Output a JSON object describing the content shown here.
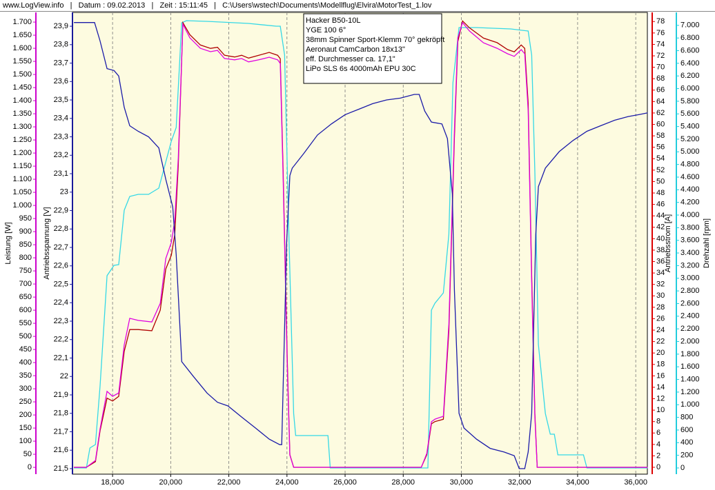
{
  "chart_data": {
    "type": "line",
    "header": "www.LogView.info   |   Datum : 09.02.2013   |   Zeit : 15:11:45   |   C:\\Users\\wstech\\Documents\\Modellflug\\Elvira\\MotorTest_1.lov",
    "info_box": [
      "Hacker B50-10L",
      "YGE 100 6°",
      "38mm Spinner Sport-Klemm 70° gekröpft",
      "Aeronaut CamCarbon 18x13\"",
      "eff. Durchmesser ca. 17,1\"",
      "LiPo SLS 6s 4000mAh EPU 30C"
    ],
    "grid": true,
    "xlim": [
      16620,
      36400
    ],
    "xticks": [
      {
        "value": 18000,
        "label": "18,000"
      },
      {
        "value": 20000,
        "label": "20,000"
      },
      {
        "value": 22000,
        "label": "22,000"
      },
      {
        "value": 24000,
        "label": "24,000"
      },
      {
        "value": 26000,
        "label": "26,000"
      },
      {
        "value": 28000,
        "label": "28,000"
      },
      {
        "value": 30000,
        "label": "30,000"
      },
      {
        "value": 32000,
        "label": "32,000"
      },
      {
        "value": 34000,
        "label": "34,000"
      },
      {
        "value": 36000,
        "label": "36,000"
      }
    ],
    "y_axes": [
      {
        "title": "Leistung [W]",
        "color": "#cc00cc",
        "ylim": [
          -26,
          1737
        ],
        "yticks": [
          0,
          50,
          100,
          150,
          200,
          250,
          300,
          350,
          400,
          450,
          500,
          550,
          600,
          650,
          700,
          750,
          800,
          850,
          900,
          950,
          {
            "value": 1000,
            "label": "1.000"
          },
          {
            "value": 1050,
            "label": "1.050"
          },
          {
            "value": 1100,
            "label": "1.100"
          },
          {
            "value": 1150,
            "label": "1.150"
          },
          {
            "value": 1200,
            "label": "1.200"
          },
          {
            "value": 1250,
            "label": "1.250"
          },
          {
            "value": 1300,
            "label": "1.300"
          },
          {
            "value": 1350,
            "label": "1.350"
          },
          {
            "value": 1400,
            "label": "1.400"
          },
          {
            "value": 1450,
            "label": "1.450"
          },
          {
            "value": 1500,
            "label": "1.500"
          },
          {
            "value": 1550,
            "label": "1.550"
          },
          {
            "value": 1600,
            "label": "1.600"
          },
          {
            "value": 1650,
            "label": "1.650"
          },
          {
            "value": 1700,
            "label": "1.700"
          }
        ]
      },
      {
        "title": "Antriebsspannung [V]",
        "color": "#1a1a9a",
        "ylim": [
          21.47,
          23.975
        ],
        "yticks": [
          {
            "value": 21.5,
            "label": "21,5"
          },
          {
            "value": 21.6,
            "label": "21,6"
          },
          {
            "value": 21.7,
            "label": "21,7"
          },
          {
            "value": 21.8,
            "label": "21,8"
          },
          {
            "value": 21.9,
            "label": "21,9"
          },
          22,
          {
            "value": 22.1,
            "label": "22,1"
          },
          {
            "value": 22.2,
            "label": "22,2"
          },
          {
            "value": 22.3,
            "label": "22,3"
          },
          {
            "value": 22.4,
            "label": "22,4"
          },
          {
            "value": 22.5,
            "label": "22,5"
          },
          {
            "value": 22.6,
            "label": "22,6"
          },
          {
            "value": 22.7,
            "label": "22,7"
          },
          {
            "value": 22.8,
            "label": "22,8"
          },
          {
            "value": 22.9,
            "label": "22,9"
          },
          23,
          {
            "value": 23.1,
            "label": "23,1"
          },
          {
            "value": 23.2,
            "label": "23,2"
          },
          {
            "value": 23.3,
            "label": "23,3"
          },
          {
            "value": 23.4,
            "label": "23,4"
          },
          {
            "value": 23.5,
            "label": "23,5"
          },
          {
            "value": 23.6,
            "label": "23,6"
          },
          {
            "value": 23.7,
            "label": "23,7"
          },
          {
            "value": 23.8,
            "label": "23,8"
          },
          {
            "value": 23.9,
            "label": "23,9"
          }
        ]
      },
      {
        "title": "Antriebsstrom [A]",
        "color": "#dd0000",
        "ylim": [
          -1.2,
          79.6
        ],
        "yticks": [
          0,
          2,
          4,
          6,
          8,
          10,
          12,
          14,
          16,
          18,
          20,
          22,
          24,
          26,
          28,
          30,
          32,
          34,
          36,
          38,
          40,
          42,
          44,
          46,
          48,
          50,
          52,
          54,
          56,
          58,
          60,
          62,
          64,
          66,
          68,
          70,
          72,
          74,
          76,
          78
        ]
      },
      {
        "title": "Drehzahl [rpm]",
        "color": "#22ccdd",
        "ylim": [
          -98,
          7205
        ],
        "yticks": [
          0,
          200,
          400,
          600,
          800,
          {
            "value": 1000,
            "label": "1.000"
          },
          {
            "value": 1200,
            "label": "1.200"
          },
          {
            "value": 1400,
            "label": "1.400"
          },
          {
            "value": 1600,
            "label": "1.600"
          },
          {
            "value": 1800,
            "label": "1.800"
          },
          {
            "value": 2000,
            "label": "2.000"
          },
          {
            "value": 2200,
            "label": "2.200"
          },
          {
            "value": 2400,
            "label": "2.400"
          },
          {
            "value": 2600,
            "label": "2.600"
          },
          {
            "value": 2800,
            "label": "2.800"
          },
          {
            "value": 3000,
            "label": "3.000"
          },
          {
            "value": 3200,
            "label": "3.200"
          },
          {
            "value": 3400,
            "label": "3.400"
          },
          {
            "value": 3600,
            "label": "3.600"
          },
          {
            "value": 3800,
            "label": "3.800"
          },
          {
            "value": 4000,
            "label": "4.000"
          },
          {
            "value": 4200,
            "label": "4.200"
          },
          {
            "value": 4400,
            "label": "4.400"
          },
          {
            "value": 4600,
            "label": "4.600"
          },
          {
            "value": 4800,
            "label": "4.800"
          },
          {
            "value": 5000,
            "label": "5.000"
          },
          {
            "value": 5200,
            "label": "5.200"
          },
          {
            "value": 5400,
            "label": "5.400"
          },
          {
            "value": 5600,
            "label": "5.600"
          },
          {
            "value": 5800,
            "label": "5.800"
          },
          {
            "value": 6000,
            "label": "6.000"
          },
          {
            "value": 6200,
            "label": "6.200"
          },
          {
            "value": 6400,
            "label": "6.400"
          },
          {
            "value": 6600,
            "label": "6.600"
          },
          {
            "value": 6800,
            "label": "6.800"
          },
          {
            "value": 7000,
            "label": "7.000"
          }
        ]
      }
    ],
    "series": [
      {
        "axis": 3,
        "color": "#33d8e6",
        "x": [
          16670,
          17100,
          17220,
          17410,
          17570,
          17810,
          18050,
          18210,
          18400,
          18590,
          18880,
          19240,
          19590,
          19830,
          20020,
          20190,
          20380,
          20540,
          21250,
          22680,
          23630,
          23770,
          23920,
          24060,
          24230,
          24300,
          24820,
          25410,
          25490,
          28380,
          28850,
          28970,
          29090,
          29380,
          29570,
          29710,
          29920,
          30520,
          31700,
          32300,
          32420,
          32530,
          32650,
          32890,
          33060,
          33200,
          33320,
          34200,
          34320,
          36410
        ],
        "values": [
          0,
          0,
          316,
          371,
          1297,
          3041,
          3205,
          3216,
          4077,
          4295,
          4327,
          4327,
          4425,
          4840,
          5167,
          5385,
          7041,
          7074,
          7063,
          7031,
          6987,
          6987,
          6529,
          3804,
          861,
          512,
          512,
          512,
          0,
          0,
          0,
          2496,
          2605,
          2769,
          3695,
          6093,
          6965,
          6965,
          6943,
          6911,
          6529,
          4676,
          1951,
          861,
          534,
          534,
          207,
          207,
          0,
          0
        ]
      },
      {
        "axis": 2,
        "color": "#b00000",
        "x": [
          16670,
          17100,
          17410,
          17570,
          17810,
          18000,
          18210,
          18400,
          18590,
          18880,
          19350,
          19640,
          19830,
          20020,
          20140,
          20260,
          20420,
          20660,
          21020,
          21370,
          21610,
          21850,
          22200,
          22440,
          22680,
          23030,
          23390,
          23680,
          23770,
          23870,
          24010,
          24100,
          24230,
          28620,
          28810,
          28970,
          29090,
          29380,
          29570,
          29760,
          29880,
          30040,
          30280,
          30760,
          31230,
          31590,
          31820,
          32060,
          32180,
          32300,
          32420,
          32530,
          32610,
          36410
        ],
        "values": [
          0,
          0,
          1.0,
          6.4,
          12.1,
          11.6,
          12.4,
          20.3,
          24.1,
          24.1,
          23.9,
          27.5,
          34.7,
          37.1,
          40.7,
          52.8,
          77.8,
          75.7,
          73.9,
          73.3,
          73.5,
          72.1,
          71.8,
          72.1,
          71.6,
          72.1,
          72.6,
          72.1,
          71.5,
          51.6,
          19.0,
          2.2,
          0,
          0,
          2.2,
          7.6,
          8.0,
          8.4,
          23.9,
          57.6,
          74.5,
          78.1,
          76.9,
          75.1,
          74.3,
          73.1,
          72.7,
          73.9,
          73.3,
          63.7,
          33.5,
          9.4,
          0,
          0
        ]
      },
      {
        "axis": 0,
        "color": "#e000e0",
        "x": [
          16670,
          17100,
          17410,
          17570,
          17810,
          18000,
          18210,
          18400,
          18590,
          18880,
          19350,
          19640,
          19830,
          20020,
          20140,
          20260,
          20420,
          20660,
          21020,
          21370,
          21610,
          21850,
          22200,
          22440,
          22680,
          23030,
          23390,
          23680,
          23770,
          23870,
          24010,
          24100,
          24230,
          28620,
          28810,
          28970,
          29090,
          29380,
          29570,
          29760,
          29880,
          30040,
          30280,
          30760,
          31230,
          31590,
          31820,
          32060,
          32180,
          32300,
          32420,
          32530,
          32610,
          36410
        ],
        "values": [
          0,
          0,
          26,
          147,
          290,
          271,
          284,
          468,
          569,
          561,
          555,
          626,
          797,
          858,
          942,
          1179,
          1692,
          1640,
          1600,
          1587,
          1592,
          1561,
          1556,
          1561,
          1548,
          1556,
          1566,
          1556,
          1542,
          1100,
          390,
          47,
          0,
          0,
          53,
          174,
          184,
          195,
          547,
          1284,
          1640,
          1698,
          1666,
          1621,
          1600,
          1579,
          1569,
          1595,
          1579,
          1363,
          705,
          192,
          0,
          0
        ]
      },
      {
        "axis": 1,
        "color": "#1a1aa8",
        "x": [
          16670,
          17380,
          17570,
          17810,
          18050,
          18210,
          18400,
          18590,
          18880,
          19240,
          19590,
          19830,
          20070,
          20190,
          20380,
          20780,
          21250,
          21610,
          21970,
          22440,
          22920,
          23390,
          23750,
          23820,
          23990,
          24100,
          24180,
          24580,
          25050,
          25530,
          26000,
          26480,
          26950,
          27430,
          27900,
          28380,
          28550,
          28740,
          28970,
          29330,
          29520,
          29690,
          29760,
          29920,
          30090,
          30520,
          30990,
          31470,
          31820,
          31990,
          32180,
          32300,
          32420,
          32560,
          32650,
          32890,
          33370,
          33840,
          34320,
          34790,
          35270,
          35740,
          36100,
          36410
        ],
        "values": [
          23.92,
          23.92,
          23.82,
          23.67,
          23.66,
          23.63,
          23.46,
          23.36,
          23.33,
          23.3,
          23.24,
          23.07,
          22.92,
          22.66,
          22.08,
          22.0,
          21.91,
          21.86,
          21.84,
          21.78,
          21.72,
          21.66,
          21.63,
          21.63,
          22.73,
          23.09,
          23.13,
          23.21,
          23.31,
          23.37,
          23.42,
          23.45,
          23.48,
          23.5,
          23.51,
          23.53,
          23.53,
          23.44,
          23.38,
          23.37,
          23.29,
          22.99,
          22.47,
          21.8,
          21.72,
          21.66,
          21.61,
          21.59,
          21.57,
          21.5,
          21.5,
          21.59,
          21.8,
          22.77,
          23.03,
          23.13,
          23.22,
          23.28,
          23.33,
          23.36,
          23.39,
          23.41,
          23.42,
          23.43
        ]
      }
    ]
  }
}
